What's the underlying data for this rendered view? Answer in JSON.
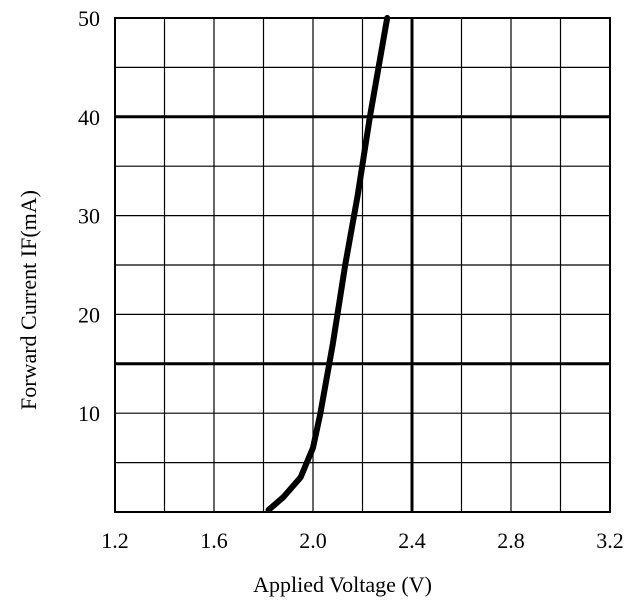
{
  "chart_data": {
    "type": "line",
    "xlabel": "Applied Voltage  (V)",
    "ylabel": "Forward Current IF(mA)",
    "xlim": [
      1.2,
      3.2
    ],
    "ylim": [
      0,
      50
    ],
    "x_ticks": [
      1.2,
      1.6,
      2.0,
      2.4,
      2.8,
      3.2
    ],
    "x_tick_labels": [
      "1.2",
      "1.6",
      "2.0",
      "2.4",
      "2.8",
      "3.2"
    ],
    "y_ticks": [
      10,
      20,
      30,
      40,
      50
    ],
    "y_tick_labels": [
      "10",
      "20",
      "30",
      "40",
      "50"
    ],
    "grid": true,
    "grid_x_step": 0.2,
    "grid_y_step": 5,
    "emphasized_gridlines": {
      "x": [
        2.4
      ],
      "y": [
        15,
        40
      ]
    },
    "series": [
      {
        "values": [
          {
            "x": 1.82,
            "y": 0.2
          },
          {
            "x": 1.88,
            "y": 1.5
          },
          {
            "x": 1.95,
            "y": 3.5
          },
          {
            "x": 2.0,
            "y": 6.5
          },
          {
            "x": 2.03,
            "y": 10
          },
          {
            "x": 2.08,
            "y": 17
          },
          {
            "x": 2.13,
            "y": 25
          },
          {
            "x": 2.18,
            "y": 32
          },
          {
            "x": 2.23,
            "y": 40
          },
          {
            "x": 2.3,
            "y": 50
          }
        ],
        "color": "#000000"
      }
    ]
  }
}
